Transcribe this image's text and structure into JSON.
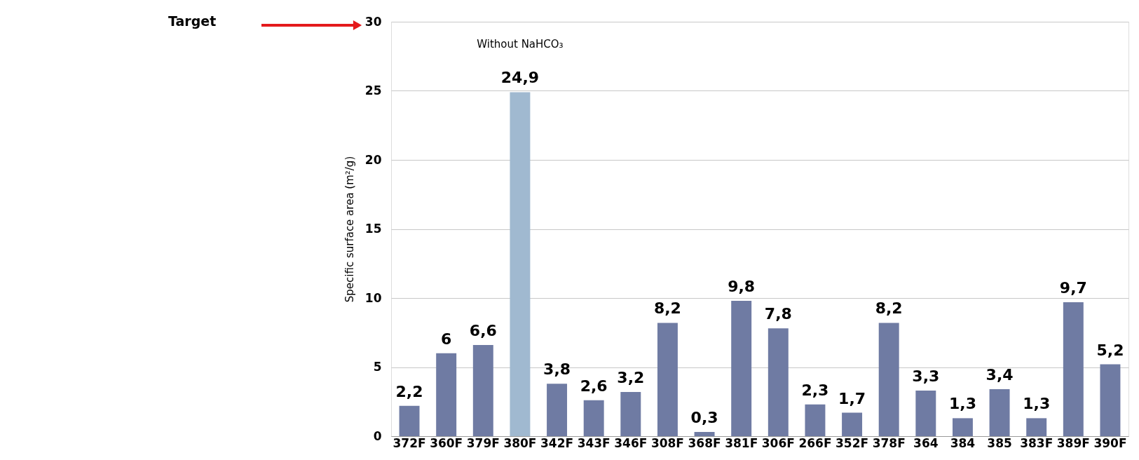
{
  "chart_data": {
    "type": "bar",
    "ylabel": "Specific surface area (m²/g)",
    "categories": [
      "372F",
      "360F",
      "379F",
      "380F",
      "342F",
      "343F",
      "346F",
      "308F",
      "368F",
      "381F",
      "306F",
      "266F",
      "352F",
      "378F",
      "364",
      "384",
      "385",
      "383F",
      "389F",
      "390F"
    ],
    "values": [
      2.2,
      6,
      6.6,
      24.9,
      3.8,
      2.6,
      3.2,
      8.2,
      0.3,
      9.8,
      7.8,
      2.3,
      1.7,
      8.2,
      3.3,
      1.3,
      3.4,
      1.3,
      9.7,
      5.2
    ],
    "value_labels": [
      "2,2",
      "6",
      "6,6",
      "24,9",
      "3,8",
      "2,6",
      "3,2",
      "8,2",
      "0,3",
      "9,8",
      "7,8",
      "2,3",
      "1,7",
      "8,2",
      "3,3",
      "1,3",
      "3,4",
      "1,3",
      "9,7",
      "5,2"
    ],
    "colors": [
      "#6f7ba3",
      "#6f7ba3",
      "#6f7ba3",
      "#a0b9d0",
      "#6f7ba3",
      "#6f7ba3",
      "#6f7ba3",
      "#6f7ba3",
      "#6f7ba3",
      "#6f7ba3",
      "#6f7ba3",
      "#6f7ba3",
      "#6f7ba3",
      "#6f7ba3",
      "#6f7ba3",
      "#6f7ba3",
      "#6f7ba3",
      "#6f7ba3",
      "#6f7ba3",
      "#6f7ba3"
    ],
    "ylim": [
      0,
      30
    ],
    "yticks": [
      0,
      5,
      10,
      15,
      20,
      25,
      30
    ],
    "grid": "y",
    "annotations": [
      "Target",
      "Without NaHCO₃"
    ]
  }
}
